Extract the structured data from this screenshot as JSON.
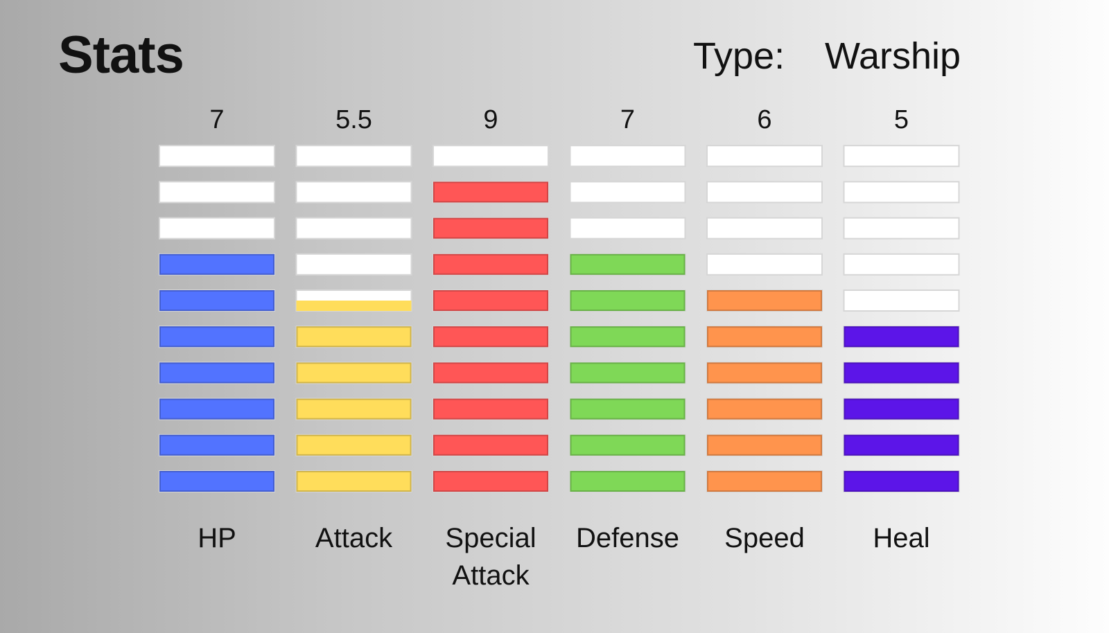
{
  "title": "Stats",
  "type_label": "Type:",
  "type_value": "Warship",
  "chart_data": {
    "type": "bar",
    "categories": [
      "HP",
      "Attack",
      "Special Attack",
      "Defense",
      "Speed",
      "Heal"
    ],
    "category_labels": [
      "HP",
      "Attack",
      "Special\nAttack",
      "Defense",
      "Speed",
      "Heal"
    ],
    "values": [
      7,
      5.5,
      9,
      7,
      6,
      5
    ],
    "value_labels": [
      "7",
      "5.5",
      "9",
      "7",
      "6",
      "5"
    ],
    "ylim": [
      0,
      10
    ],
    "colors": [
      "#5273ff",
      "#ffdd5b",
      "#ff5656",
      "#7fd857",
      "#ff944d",
      "#5c15e8"
    ],
    "empty_color": "#ffffff"
  }
}
